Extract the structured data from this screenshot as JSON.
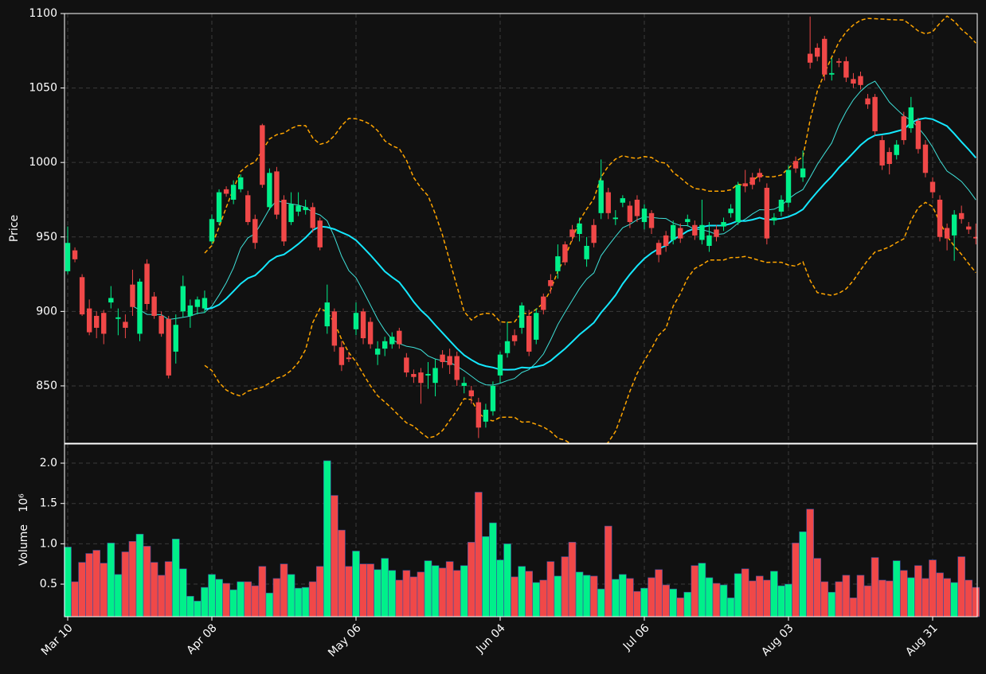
{
  "chart_data": {
    "type": "candlestick",
    "ylabel": "Price",
    "volume_label": "Volume",
    "volume_offset_label": "10⁶",
    "up_color": "#00f08a",
    "down_color": "#f04848",
    "grid": true,
    "categories": [
      "Mar 10",
      null,
      null,
      null,
      null,
      null,
      null,
      null,
      null,
      null,
      null,
      null,
      null,
      null,
      null,
      null,
      null,
      null,
      null,
      null,
      "Apr 08",
      null,
      null,
      null,
      null,
      null,
      null,
      null,
      null,
      null,
      null,
      null,
      null,
      null,
      null,
      null,
      null,
      null,
      null,
      null,
      "May 06",
      null,
      null,
      null,
      null,
      null,
      null,
      null,
      null,
      null,
      null,
      null,
      null,
      null,
      null,
      null,
      null,
      null,
      null,
      null,
      "Jun 04",
      null,
      null,
      null,
      null,
      null,
      null,
      null,
      null,
      null,
      null,
      null,
      null,
      null,
      null,
      null,
      null,
      null,
      null,
      null,
      "Jul 06",
      null,
      null,
      null,
      null,
      null,
      null,
      null,
      null,
      null,
      null,
      null,
      null,
      null,
      null,
      null,
      null,
      null,
      null,
      null,
      "Aug 03",
      null,
      null,
      null,
      null,
      null,
      null,
      null,
      null,
      null,
      null,
      null,
      null,
      null,
      null,
      null,
      null,
      null,
      null,
      null,
      "Aug 31",
      null,
      null,
      null,
      null,
      null,
      null
    ],
    "open": [
      927,
      941,
      923,
      902,
      897,
      899,
      906,
      895,
      893,
      918,
      885,
      932,
      910,
      897,
      895,
      873,
      900,
      897,
      903,
      902,
      947,
      960,
      982,
      975,
      982,
      978,
      962,
      1025,
      970,
      994,
      975,
      960,
      967,
      968,
      970,
      961,
      890,
      900,
      876,
      869,
      888,
      900,
      893,
      871,
      875,
      878,
      887,
      869,
      858,
      859,
      857,
      852,
      871,
      870,
      870,
      850,
      847,
      839,
      826,
      833,
      857,
      872,
      884,
      889,
      897,
      881,
      910,
      921,
      927,
      945,
      955,
      952,
      935,
      958,
      966,
      980,
      962,
      973,
      971,
      975,
      960,
      966,
      946,
      951,
      948,
      956,
      960,
      958,
      948,
      944,
      955,
      957,
      966,
      960,
      986,
      990,
      993,
      983,
      961,
      967,
      973,
      1001,
      990,
      1073,
      1077,
      1083,
      1059,
      1068,
      1068,
      1056,
      1058,
      1043,
      1044,
      1015,
      1007,
      1005,
      1031,
      1023,
      1028,
      1012,
      987,
      975,
      956,
      951,
      966,
      957,
      950
    ],
    "high": [
      957,
      943,
      925,
      908,
      900,
      901,
      917,
      902,
      898,
      928,
      922,
      935,
      913,
      900,
      897,
      898,
      924,
      908,
      910,
      914,
      965,
      982,
      984,
      988,
      992,
      981,
      965,
      1026,
      996,
      997,
      978,
      980,
      980,
      975,
      973,
      963,
      918,
      902,
      880,
      872,
      906,
      902,
      896,
      880,
      883,
      886,
      889,
      872,
      861,
      862,
      866,
      868,
      874,
      875,
      873,
      856,
      850,
      842,
      838,
      853,
      873,
      893,
      888,
      906,
      901,
      902,
      912,
      925,
      945,
      947,
      958,
      963,
      950,
      962,
      1002,
      983,
      968,
      978,
      974,
      978,
      972,
      968,
      948,
      954,
      961,
      959,
      965,
      961,
      975,
      960,
      958,
      963,
      972,
      987,
      995,
      993,
      996,
      986,
      966,
      978,
      998,
      1004,
      1008,
      1098,
      1080,
      1085,
      1070,
      1070,
      1071,
      1060,
      1061,
      1046,
      1046,
      1018,
      1010,
      1015,
      1034,
      1044,
      1030,
      1015,
      990,
      978,
      959,
      968,
      971,
      960,
      959
    ],
    "low": [
      925,
      933,
      897,
      884,
      882,
      878,
      902,
      884,
      882,
      897,
      880,
      901,
      895,
      883,
      855,
      865,
      896,
      889,
      898,
      899,
      945,
      958,
      977,
      972,
      980,
      958,
      942,
      983,
      968,
      962,
      944,
      958,
      964,
      965,
      953,
      941,
      885,
      873,
      860,
      866,
      884,
      878,
      875,
      864,
      870,
      875,
      875,
      856,
      852,
      838,
      848,
      843,
      862,
      858,
      850,
      845,
      838,
      815,
      822,
      830,
      852,
      869,
      877,
      885,
      870,
      878,
      898,
      912,
      922,
      931,
      947,
      947,
      930,
      943,
      962,
      962,
      958,
      970,
      956,
      960,
      955,
      952,
      933,
      940,
      945,
      946,
      957,
      948,
      945,
      940,
      947,
      954,
      963,
      958,
      980,
      982,
      987,
      945,
      958,
      964,
      970,
      993,
      987,
      1063,
      1068,
      1055,
      1055,
      1064,
      1054,
      1050,
      1049,
      1036,
      1018,
      995,
      992,
      1002,
      1012,
      1020,
      1006,
      990,
      976,
      947,
      941,
      934,
      959,
      952,
      945
    ],
    "close": [
      946,
      935,
      898,
      886,
      889,
      885,
      909,
      896,
      889,
      903,
      920,
      905,
      897,
      885,
      857,
      891,
      917,
      904,
      908,
      909,
      962,
      980,
      979,
      985,
      990,
      960,
      946,
      985,
      993,
      965,
      947,
      972,
      971,
      970,
      956,
      943,
      906,
      877,
      864,
      868,
      899,
      882,
      878,
      875,
      880,
      883,
      878,
      859,
      856,
      852,
      858,
      862,
      866,
      864,
      854,
      852,
      843,
      822,
      834,
      850,
      871,
      880,
      880,
      904,
      873,
      899,
      901,
      917,
      937,
      933,
      950,
      959,
      944,
      946,
      988,
      966,
      963,
      976,
      960,
      964,
      969,
      956,
      938,
      944,
      958,
      949,
      962,
      951,
      958,
      951,
      950,
      960,
      969,
      985,
      984,
      985,
      990,
      949,
      963,
      975,
      995,
      996,
      996,
      1067,
      1071,
      1059,
      1060,
      1067,
      1057,
      1053,
      1052,
      1039,
      1021,
      998,
      999,
      1012,
      1015,
      1037,
      1009,
      993,
      980,
      950,
      949,
      965,
      962,
      955,
      949
    ],
    "volume": [
      0.96,
      0.53,
      0.77,
      0.88,
      0.92,
      0.76,
      1.01,
      0.62,
      0.9,
      1.03,
      1.12,
      0.97,
      0.77,
      0.61,
      0.78,
      1.06,
      0.69,
      0.35,
      0.29,
      0.46,
      0.62,
      0.56,
      0.51,
      0.43,
      0.53,
      0.53,
      0.48,
      0.72,
      0.39,
      0.57,
      0.75,
      0.62,
      0.45,
      0.46,
      0.53,
      0.72,
      2.03,
      1.6,
      1.17,
      0.72,
      0.91,
      0.75,
      0.75,
      0.68,
      0.82,
      0.67,
      0.55,
      0.67,
      0.59,
      0.65,
      0.79,
      0.73,
      0.7,
      0.78,
      0.67,
      0.73,
      1.02,
      1.64,
      1.09,
      1.26,
      0.8,
      1.0,
      0.59,
      0.72,
      0.66,
      0.52,
      0.55,
      0.78,
      0.6,
      0.84,
      1.02,
      0.65,
      0.61,
      0.6,
      0.44,
      1.22,
      0.56,
      0.62,
      0.57,
      0.41,
      0.45,
      0.58,
      0.68,
      0.49,
      0.44,
      0.33,
      0.4,
      0.73,
      0.76,
      0.58,
      0.51,
      0.49,
      0.33,
      0.63,
      0.69,
      0.54,
      0.6,
      0.55,
      0.66,
      0.48,
      0.5,
      1.01,
      1.15,
      1.43,
      0.82,
      0.53,
      0.4,
      0.53,
      0.61,
      0.33,
      0.61,
      0.48,
      0.83,
      0.55,
      0.54,
      0.79,
      0.67,
      0.58,
      0.73,
      0.57,
      0.8,
      0.64,
      0.57,
      0.52,
      0.84,
      0.55,
      0.46
    ],
    "ylim": [
      811.5,
      1100
    ],
    "yticks": [
      850,
      900,
      950,
      1000,
      1050,
      1100
    ],
    "volume_ylim": [
      0.096,
      2.237
    ],
    "volume_yticks": [
      0.5,
      {
        "value": 1,
        "label": "1.0"
      },
      1.5,
      {
        "value": 2,
        "label": "2.0"
      }
    ],
    "moving_averages": [
      {
        "window": 10,
        "color": "#3fe0d8",
        "width": 1
      },
      {
        "window": 20,
        "color": "#14e8ff",
        "width": 2
      }
    ],
    "bollinger": {
      "window": 20,
      "k": 2,
      "color": "#ffa500"
    }
  }
}
